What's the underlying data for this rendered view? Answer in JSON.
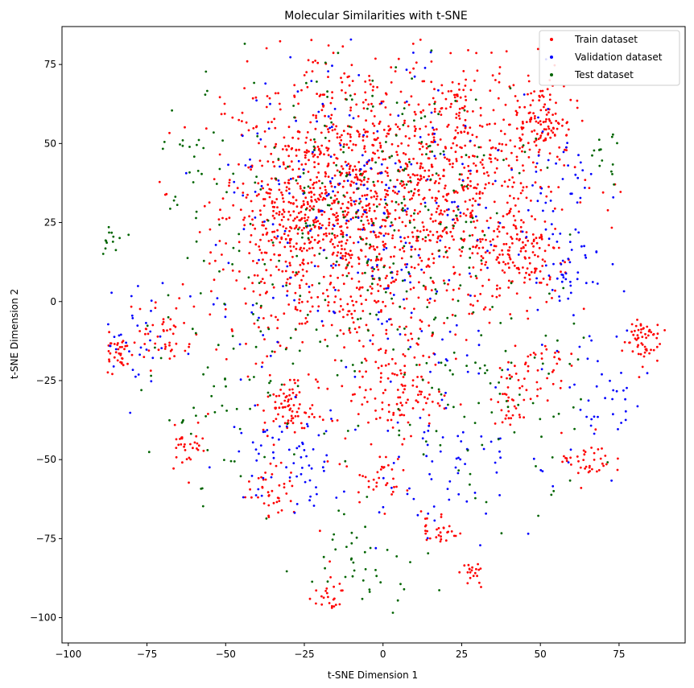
{
  "chart_data": {
    "type": "scatter",
    "title": "Molecular Similarities with t-SNE",
    "xlabel": "t-SNE Dimension 1",
    "ylabel": "t-SNE Dimension 2",
    "xlim": [
      -102,
      96
    ],
    "ylim": [
      -108,
      87
    ],
    "xticks": [
      -100,
      -75,
      -50,
      -25,
      0,
      25,
      50,
      75
    ],
    "yticks": [
      -100,
      -75,
      -50,
      -25,
      0,
      25,
      50,
      75
    ],
    "grid": false,
    "legend_position": "top-right",
    "series": [
      {
        "name": "Train dataset",
        "color": "#ff0000",
        "point_count_estimate": 3000,
        "clusters": [
          {
            "cx": -8,
            "cy": 28,
            "sx": 21,
            "sy": 25,
            "n": 1200
          },
          {
            "cx": 28,
            "cy": 42,
            "sx": 16,
            "sy": 18,
            "n": 380
          },
          {
            "cx": 50,
            "cy": 57,
            "sx": 4,
            "sy": 6,
            "n": 90
          },
          {
            "cx": 44,
            "cy": 15,
            "sx": 7,
            "sy": 8,
            "n": 140
          },
          {
            "cx": -30,
            "cy": 28,
            "sx": 9,
            "sy": 12,
            "n": 200
          },
          {
            "cx": -30,
            "cy": -34,
            "sx": 4,
            "sy": 4,
            "n": 70
          },
          {
            "cx": 5,
            "cy": -30,
            "sx": 7,
            "sy": 6,
            "n": 90
          },
          {
            "cx": 82,
            "cy": -12,
            "sx": 3,
            "sy": 4,
            "n": 60
          },
          {
            "cx": -85,
            "cy": -16,
            "sx": 3,
            "sy": 3,
            "n": 40
          },
          {
            "cx": -18,
            "cy": -93,
            "sx": 3,
            "sy": 3,
            "n": 25
          },
          {
            "cx": 28,
            "cy": -87,
            "sx": 2,
            "sy": 2,
            "n": 20
          },
          {
            "cx": 65,
            "cy": -50,
            "sx": 4,
            "sy": 4,
            "n": 40
          },
          {
            "cx": 18,
            "cy": -72,
            "sx": 3,
            "sy": 3,
            "n": 30
          },
          {
            "cx": -35,
            "cy": -60,
            "sx": 4,
            "sy": 4,
            "n": 40
          },
          {
            "cx": -62,
            "cy": -45,
            "sx": 3,
            "sy": 4,
            "n": 30
          },
          {
            "cx": 42,
            "cy": -30,
            "sx": 4,
            "sy": 5,
            "n": 40
          },
          {
            "cx": -70,
            "cy": -10,
            "sx": 5,
            "sy": 6,
            "n": 45
          },
          {
            "cx": -2,
            "cy": -55,
            "sx": 4,
            "sy": 4,
            "n": 35
          },
          {
            "cx": 50,
            "cy": -20,
            "sx": 4,
            "sy": 4,
            "n": 30
          }
        ]
      },
      {
        "name": "Validation dataset",
        "color": "#0000ff",
        "point_count_estimate": 700,
        "clusters": [
          {
            "cx": -5,
            "cy": 25,
            "sx": 24,
            "sy": 28,
            "n": 260
          },
          {
            "cx": 55,
            "cy": 25,
            "sx": 8,
            "sy": 20,
            "n": 60
          },
          {
            "cx": -30,
            "cy": -50,
            "sx": 10,
            "sy": 8,
            "n": 60
          },
          {
            "cx": 20,
            "cy": -45,
            "sx": 15,
            "sy": 14,
            "n": 80
          },
          {
            "cx": 60,
            "cy": 8,
            "sx": 4,
            "sy": 4,
            "n": 25
          },
          {
            "cx": -80,
            "cy": -12,
            "sx": 8,
            "sy": 10,
            "n": 40
          },
          {
            "cx": 70,
            "cy": -30,
            "sx": 8,
            "sy": 12,
            "n": 40
          }
        ]
      },
      {
        "name": "Test dataset",
        "color": "#006400",
        "point_count_estimate": 700,
        "clusters": [
          {
            "cx": -2,
            "cy": 28,
            "sx": 24,
            "sy": 28,
            "n": 260
          },
          {
            "cx": 30,
            "cy": -30,
            "sx": 18,
            "sy": 18,
            "n": 90
          },
          {
            "cx": -45,
            "cy": -30,
            "sx": 14,
            "sy": 16,
            "n": 70
          },
          {
            "cx": -60,
            "cy": 40,
            "sx": 6,
            "sy": 12,
            "n": 30
          },
          {
            "cx": 70,
            "cy": 45,
            "sx": 3,
            "sy": 4,
            "n": 15
          },
          {
            "cx": -5,
            "cy": -80,
            "sx": 10,
            "sy": 8,
            "n": 40
          },
          {
            "cx": -88,
            "cy": 20,
            "sx": 3,
            "sy": 3,
            "n": 20
          }
        ]
      }
    ]
  }
}
